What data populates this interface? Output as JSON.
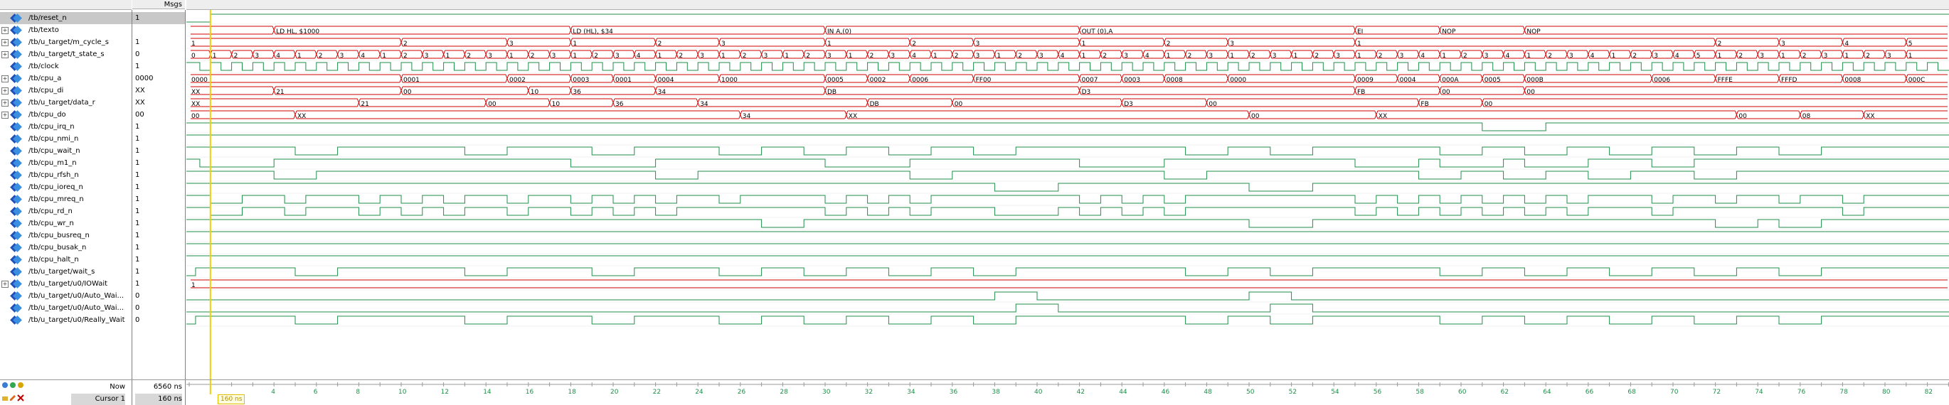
{
  "header": {
    "msgs_label": "Msgs"
  },
  "signals": [
    {
      "name": "/tb/reset_n",
      "value": "1",
      "expand": false,
      "selected": true
    },
    {
      "name": "/tb/texto",
      "value": "",
      "expand": true
    },
    {
      "name": "/tb/u_target/m_cycle_s",
      "value": "1",
      "expand": true
    },
    {
      "name": "/tb/u_target/t_state_s",
      "value": "0",
      "expand": true
    },
    {
      "name": "/tb/clock",
      "value": "1",
      "expand": false
    },
    {
      "name": "/tb/cpu_a",
      "value": "0000",
      "expand": true
    },
    {
      "name": "/tb/cpu_di",
      "value": "XX",
      "expand": true
    },
    {
      "name": "/tb/u_target/data_r",
      "value": "XX",
      "expand": true
    },
    {
      "name": "/tb/cpu_do",
      "value": "00",
      "expand": true
    },
    {
      "name": "/tb/cpu_irq_n",
      "value": "1",
      "expand": false
    },
    {
      "name": "/tb/cpu_nmi_n",
      "value": "1",
      "expand": false
    },
    {
      "name": "/tb/cpu_wait_n",
      "value": "1",
      "expand": false
    },
    {
      "name": "/tb/cpu_m1_n",
      "value": "1",
      "expand": false
    },
    {
      "name": "/tb/cpu_rfsh_n",
      "value": "1",
      "expand": false
    },
    {
      "name": "/tb/cpu_ioreq_n",
      "value": "1",
      "expand": false
    },
    {
      "name": "/tb/cpu_mreq_n",
      "value": "1",
      "expand": false
    },
    {
      "name": "/tb/cpu_rd_n",
      "value": "1",
      "expand": false
    },
    {
      "name": "/tb/cpu_wr_n",
      "value": "1",
      "expand": false
    },
    {
      "name": "/tb/cpu_busreq_n",
      "value": "1",
      "expand": false
    },
    {
      "name": "/tb/cpu_busak_n",
      "value": "1",
      "expand": false
    },
    {
      "name": "/tb/cpu_halt_n",
      "value": "1",
      "expand": false
    },
    {
      "name": "/tb/u_target/wait_s",
      "value": "1",
      "expand": false
    },
    {
      "name": "/tb/u_target/u0/IOWait",
      "value": "1",
      "expand": true
    },
    {
      "name": "/tb/u_target/u0/Auto_Wai...",
      "value": "0",
      "expand": false
    },
    {
      "name": "/tb/u_target/u0/Auto_Wai...",
      "value": "0",
      "expand": false
    },
    {
      "name": "/tb/u_target/u0/Really_Wait",
      "value": "0",
      "expand": false
    }
  ],
  "texto_labels": [
    {
      "t": 4,
      "text": "LD HL, $1000"
    },
    {
      "t": 18,
      "text": "LD (HL), $34"
    },
    {
      "t": 30,
      "text": "IN A,(0)"
    },
    {
      "t": 42,
      "text": "OUT (0),A"
    },
    {
      "t": 55,
      "text": "EI"
    },
    {
      "t": 59,
      "text": "NOP"
    },
    {
      "t": 63,
      "text": "NOP"
    }
  ],
  "bus_cpu_a": [
    {
      "t": 0,
      "text": "0000"
    },
    {
      "t": 10,
      "text": "0001"
    },
    {
      "t": 15,
      "text": "0002"
    },
    {
      "t": 18,
      "text": "0003"
    },
    {
      "t": 20,
      "text": "0001"
    },
    {
      "t": 22,
      "text": "0004"
    },
    {
      "t": 25,
      "text": "1000"
    },
    {
      "t": 30,
      "text": "0005"
    },
    {
      "t": 32,
      "text": "0002"
    },
    {
      "t": 34,
      "text": "0006"
    },
    {
      "t": 37,
      "text": "FF00"
    },
    {
      "t": 42,
      "text": "0007"
    },
    {
      "t": 44,
      "text": "0003"
    },
    {
      "t": 46,
      "text": "0008"
    },
    {
      "t": 49,
      "text": "0000"
    },
    {
      "t": 55,
      "text": "0009"
    },
    {
      "t": 57,
      "text": "0004"
    },
    {
      "t": 59,
      "text": "000A"
    },
    {
      "t": 61,
      "text": "0005"
    },
    {
      "t": 63,
      "text": "000B"
    },
    {
      "t": 69,
      "text": "0006"
    },
    {
      "t": 72,
      "text": "FFFE"
    },
    {
      "t": 75,
      "text": "FFFD"
    },
    {
      "t": 78,
      "text": "0008"
    },
    {
      "t": 81,
      "text": "000C"
    }
  ],
  "bus_cpu_di": [
    {
      "t": 0,
      "text": "XX"
    },
    {
      "t": 4,
      "text": "21"
    },
    {
      "t": 10,
      "text": "00"
    },
    {
      "t": 16,
      "text": "10"
    },
    {
      "t": 18,
      "text": "36"
    },
    {
      "t": 22,
      "text": "34"
    },
    {
      "t": 30,
      "text": "DB"
    },
    {
      "t": 42,
      "text": "D3"
    },
    {
      "t": 55,
      "text": "FB"
    },
    {
      "t": 59,
      "text": "00"
    },
    {
      "t": 63,
      "text": "00"
    }
  ],
  "bus_data_r": [
    {
      "t": 0,
      "text": "XX"
    },
    {
      "t": 8,
      "text": "21"
    },
    {
      "t": 14,
      "text": "00"
    },
    {
      "t": 17,
      "text": "10"
    },
    {
      "t": 20,
      "text": "36"
    },
    {
      "t": 24,
      "text": "34"
    },
    {
      "t": 32,
      "text": "DB"
    },
    {
      "t": 36,
      "text": "00"
    },
    {
      "t": 44,
      "text": "D3"
    },
    {
      "t": 48,
      "text": "00"
    },
    {
      "t": 58,
      "text": "FB"
    },
    {
      "t": 61,
      "text": "00"
    }
  ],
  "bus_cpu_do": [
    {
      "t": 0,
      "text": "00"
    },
    {
      "t": 5,
      "text": "XX"
    },
    {
      "t": 26,
      "text": "34"
    },
    {
      "t": 31,
      "text": "XX"
    },
    {
      "t": 50,
      "text": "00"
    },
    {
      "t": 56,
      "text": "XX"
    },
    {
      "t": 73,
      "text": "00"
    },
    {
      "t": 76,
      "text": "08"
    },
    {
      "t": 79,
      "text": "XX"
    }
  ],
  "bus_m_cycle": [
    {
      "t": 0,
      "text": "1"
    },
    {
      "t": 10,
      "text": "2"
    },
    {
      "t": 15,
      "text": "3"
    },
    {
      "t": 18,
      "text": "1"
    },
    {
      "t": 22,
      "text": "2"
    },
    {
      "t": 25,
      "text": "3"
    },
    {
      "t": 30,
      "text": "1"
    },
    {
      "t": 34,
      "text": "2"
    },
    {
      "t": 37,
      "text": "3"
    },
    {
      "t": 42,
      "text": "1"
    },
    {
      "t": 46,
      "text": "2"
    },
    {
      "t": 49,
      "text": "3"
    },
    {
      "t": 55,
      "text": "1"
    },
    {
      "t": 72,
      "text": "2"
    },
    {
      "t": 75,
      "text": "3"
    },
    {
      "t": 78,
      "text": "4"
    },
    {
      "t": 81,
      "text": "5"
    }
  ],
  "bus_t_state": [
    {
      "t": 0,
      "text": "0"
    },
    {
      "t": 1,
      "text": "1"
    },
    {
      "t": 2,
      "text": "2"
    },
    {
      "t": 3,
      "text": "3"
    },
    {
      "t": 4,
      "text": "4"
    },
    {
      "t": 5,
      "text": "1"
    },
    {
      "t": 6,
      "text": "2"
    },
    {
      "t": 7,
      "text": "3"
    },
    {
      "t": 8,
      "text": "4"
    },
    {
      "t": 9,
      "text": "1"
    },
    {
      "t": 10,
      "text": "2"
    },
    {
      "t": 11,
      "text": "3"
    },
    {
      "t": 12,
      "text": "1"
    },
    {
      "t": 13,
      "text": "2"
    },
    {
      "t": 14,
      "text": "3"
    },
    {
      "t": 15,
      "text": "1"
    },
    {
      "t": 16,
      "text": "2"
    },
    {
      "t": 17,
      "text": "3"
    },
    {
      "t": 18,
      "text": "1"
    },
    {
      "t": 19,
      "text": "2"
    },
    {
      "t": 20,
      "text": "3"
    },
    {
      "t": 21,
      "text": "4"
    },
    {
      "t": 22,
      "text": "1"
    },
    {
      "t": 23,
      "text": "2"
    },
    {
      "t": 24,
      "text": "3"
    },
    {
      "t": 25,
      "text": "1"
    },
    {
      "t": 26,
      "text": "2"
    },
    {
      "t": 27,
      "text": "3"
    },
    {
      "t": 28,
      "text": "1"
    },
    {
      "t": 29,
      "text": "2"
    },
    {
      "t": 30,
      "text": "3"
    },
    {
      "t": 31,
      "text": "1"
    },
    {
      "t": 32,
      "text": "2"
    },
    {
      "t": 33,
      "text": "3"
    },
    {
      "t": 34,
      "text": "4"
    },
    {
      "t": 35,
      "text": "1"
    },
    {
      "t": 36,
      "text": "2"
    },
    {
      "t": 37,
      "text": "3"
    },
    {
      "t": 38,
      "text": "1"
    },
    {
      "t": 39,
      "text": "2"
    },
    {
      "t": 40,
      "text": "3"
    },
    {
      "t": 41,
      "text": "4"
    },
    {
      "t": 42,
      "text": "1"
    },
    {
      "t": 43,
      "text": "2"
    },
    {
      "t": 44,
      "text": "3"
    },
    {
      "t": 45,
      "text": "4"
    },
    {
      "t": 46,
      "text": "1"
    },
    {
      "t": 47,
      "text": "2"
    },
    {
      "t": 48,
      "text": "3"
    },
    {
      "t": 49,
      "text": "1"
    },
    {
      "t": 50,
      "text": "2"
    },
    {
      "t": 51,
      "text": "3"
    },
    {
      "t": 52,
      "text": "1"
    },
    {
      "t": 53,
      "text": "2"
    },
    {
      "t": 54,
      "text": "3"
    },
    {
      "t": 55,
      "text": "1"
    },
    {
      "t": 56,
      "text": "2"
    },
    {
      "t": 57,
      "text": "3"
    },
    {
      "t": 58,
      "text": "4"
    },
    {
      "t": 59,
      "text": "1"
    },
    {
      "t": 60,
      "text": "2"
    },
    {
      "t": 61,
      "text": "3"
    },
    {
      "t": 62,
      "text": "4"
    },
    {
      "t": 63,
      "text": "1"
    },
    {
      "t": 64,
      "text": "2"
    },
    {
      "t": 65,
      "text": "3"
    },
    {
      "t": 66,
      "text": "4"
    },
    {
      "t": 67,
      "text": "1"
    },
    {
      "t": 68,
      "text": "2"
    },
    {
      "t": 69,
      "text": "3"
    },
    {
      "t": 70,
      "text": "4"
    },
    {
      "t": 71,
      "text": "5"
    },
    {
      "t": 72,
      "text": "1"
    },
    {
      "t": 73,
      "text": "2"
    },
    {
      "t": 74,
      "text": "3"
    },
    {
      "t": 75,
      "text": "1"
    },
    {
      "t": 76,
      "text": "2"
    },
    {
      "t": 77,
      "text": "3"
    },
    {
      "t": 78,
      "text": "1"
    },
    {
      "t": 79,
      "text": "2"
    },
    {
      "t": 80,
      "text": "3"
    },
    {
      "t": 81,
      "text": "1"
    }
  ],
  "bus_iowait": [
    {
      "t": 0,
      "text": "1"
    }
  ],
  "timeline": {
    "ticks": [
      "4",
      "6",
      "8",
      "10",
      "12",
      "14",
      "16",
      "18",
      "20",
      "22",
      "24",
      "26",
      "28",
      "30",
      "32",
      "34",
      "36",
      "38",
      "40",
      "42",
      "44",
      "46",
      "48",
      "50",
      "52",
      "54",
      "56",
      "58",
      "60",
      "62",
      "64",
      "66",
      "68",
      "70",
      "72",
      "74",
      "76",
      "78",
      "80",
      "82"
    ]
  },
  "footer": {
    "now_label": "Now",
    "now_value": "6560 ns",
    "cursor_label": "Cursor 1",
    "cursor_value": "160 ns",
    "cursor_tag": "160 ns"
  },
  "colors": {
    "wave": "#1f8f4a",
    "bus_red": "#d00000",
    "cursor": "#f2d000"
  }
}
